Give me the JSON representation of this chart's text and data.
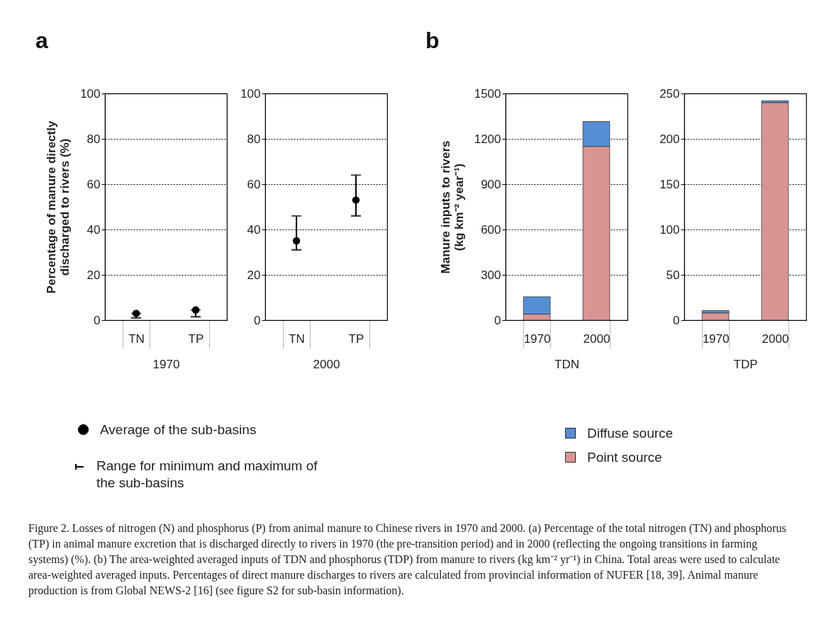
{
  "chart_data": [
    {
      "type": "scatter",
      "title": "a",
      "ylabel": "Percentage of manure directly discharged to rivers (%)",
      "xlabel": "1970",
      "categories": [
        "TN",
        "TP"
      ],
      "ylim": [
        0,
        100
      ],
      "yticks": [
        0,
        20,
        40,
        60,
        80,
        100
      ],
      "grid": "y",
      "marker": "circle",
      "legend": "bottom",
      "series": [
        {
          "name": "Average of the sub-basins",
          "color": "#000000",
          "values": [
            3,
            4.5
          ],
          "errors": [
            [
              1,
              3
            ],
            [
              1.5,
              4.5
            ]
          ]
        }
      ],
      "annotations": [
        "Range for minimum and maximum of the sub-basins"
      ]
    },
    {
      "type": "scatter",
      "xlabel": "2000",
      "categories": [
        "TN",
        "TP"
      ],
      "ylim": [
        0,
        100
      ],
      "yticks": [
        0,
        20,
        40,
        60,
        80,
        100
      ],
      "grid": "y",
      "marker": "circle",
      "series": [
        {
          "color": "#000000",
          "values": [
            35,
            53
          ],
          "errors": [
            [
              31,
              46
            ],
            [
              46,
              64
            ]
          ]
        }
      ]
    },
    {
      "type": "bar",
      "title": "b",
      "ylabel": "Manure inputs to rivers (kg km⁻² year⁻¹)",
      "xlabel": "TDN",
      "categories": [
        "1970",
        "2000"
      ],
      "ylim": [
        0,
        1500
      ],
      "yticks": [
        0,
        300,
        600,
        900,
        1200,
        1500
      ],
      "grid": "y",
      "stacked": true,
      "legend": "bottom",
      "series": [
        {
          "name": "Point source",
          "color": "#d99594",
          "values": [
            40,
            1150
          ]
        },
        {
          "name": "Diffuse source",
          "color": "#558ed5",
          "values": [
            115,
            165
          ]
        }
      ]
    },
    {
      "type": "bar",
      "xlabel": "TDP",
      "categories": [
        "1970",
        "2000"
      ],
      "ylim": [
        0,
        250
      ],
      "yticks": [
        0,
        50,
        100,
        150,
        200,
        250
      ],
      "grid": "y",
      "stacked": true,
      "series": [
        {
          "color": "#d99594",
          "values": [
            8,
            240
          ]
        },
        {
          "color": "#558ed5",
          "values": [
            2.5,
            2
          ]
        }
      ],
      "annotations": [
        "Figure 2. Losses of nitrogen (N) and phosphorus (P) from animal manure to Chinese rivers in 1970 and 2000. (a) Percentage of the total nitrogen (TN) and phosphorus (TP) in animal manure excretion that is discharged directly to rivers in 1970 (the pre-transition period) and in 2000 (reflecting the ongoing transitions in farming systems) (%). (b) The area-weighted averaged inputs of TDN and phosphorus (TDP) from manure to rivers (kg km⁻² yr⁻¹) in China. Total areas were used to calculate area-weighted averaged inputs. Percentages of direct manure discharges to rivers are calculated from provincial information of NUFER [18, 39]. Animal manure production is from Global NEWS-2 [16] (see figure S2 for sub-basin information)."
      ]
    }
  ]
}
